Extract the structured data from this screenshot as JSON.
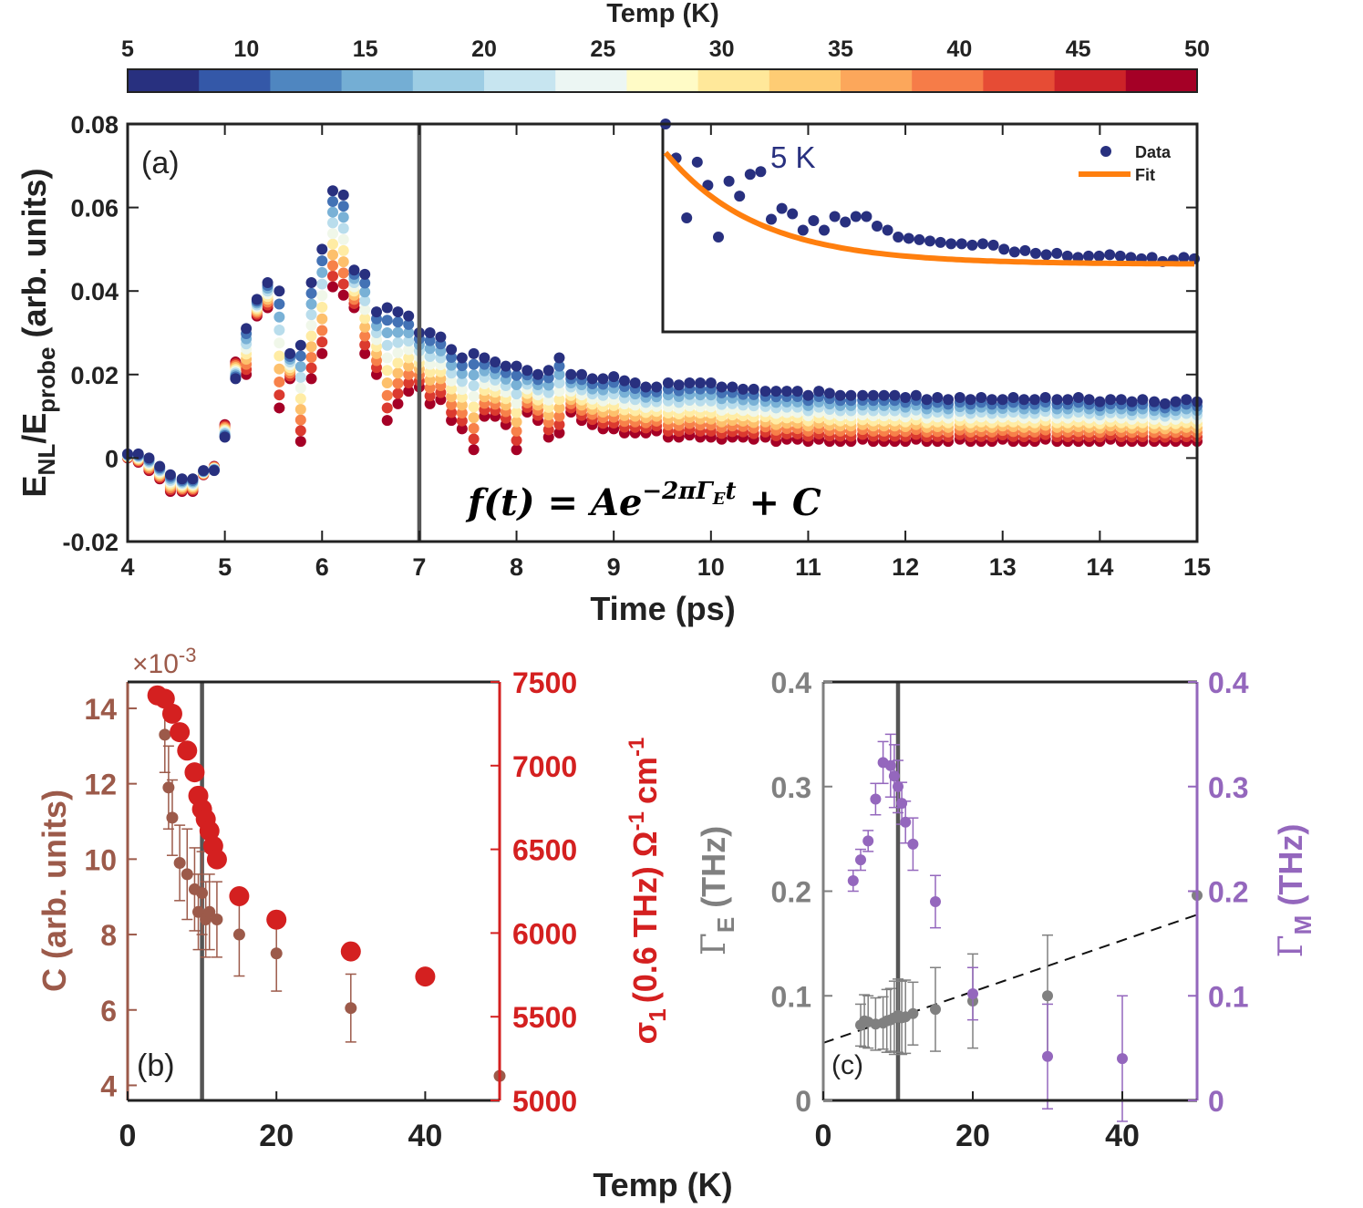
{
  "colorbar": {
    "title": "Temp (K)",
    "ticks": [
      "5",
      "10",
      "15",
      "20",
      "25",
      "30",
      "35",
      "40",
      "45",
      "50"
    ],
    "colors": [
      "#28307f",
      "#3458a8",
      "#4f86c0",
      "#74aed4",
      "#9dcde4",
      "#c7e5f0",
      "#ecf6f3",
      "#fffbc6",
      "#ffe89a",
      "#fecc74",
      "#fca75b",
      "#f67c48",
      "#e64c35",
      "#cd2328",
      "#a50026"
    ]
  },
  "chart_data": [
    {
      "id": "a",
      "type": "scatter",
      "panel_label": "(a)",
      "xlabel": "Time (ps)",
      "ylabel_main": "E",
      "ylabel_sub1": "NL",
      "ylabel_mid": "/E",
      "ylabel_sub2": "probe",
      "ylabel_tail": " (arb. units)",
      "xlim": [
        4,
        15
      ],
      "ylim": [
        -0.02,
        0.08
      ],
      "xticks": [
        "4",
        "5",
        "6",
        "7",
        "8",
        "9",
        "10",
        "11",
        "12",
        "13",
        "14",
        "15"
      ],
      "yticks": [
        "-0.02",
        "0",
        "0.02",
        "0.04",
        "0.06",
        "0.08"
      ],
      "vline_x": 7,
      "formula": {
        "lhs": "f(t) = Ae",
        "exp": "−2πΓ",
        "exp_sub": "E",
        "exp_t": "t",
        "rhs": " + C"
      },
      "series_5K": {
        "x": [
          4.0,
          4.11,
          4.22,
          4.33,
          4.44,
          4.56,
          4.67,
          4.78,
          4.89,
          5.0,
          5.11,
          5.22,
          5.33,
          5.44,
          5.56,
          5.67,
          5.78,
          5.89,
          6.0,
          6.11,
          6.22,
          6.33,
          6.44,
          6.56,
          6.67,
          6.78,
          6.89,
          7.0,
          7.11,
          7.22,
          7.33,
          7.44,
          7.56,
          7.67,
          7.78,
          7.89,
          8.0,
          8.11,
          8.22,
          8.33,
          8.44,
          8.56,
          8.67,
          8.78,
          8.89,
          9.0,
          9.11,
          9.22,
          9.33,
          9.44,
          9.56,
          9.67,
          9.78,
          9.89,
          10.0,
          10.11,
          10.22,
          10.33,
          10.44,
          10.56,
          10.67,
          10.78,
          10.89,
          11.0,
          11.11,
          11.22,
          11.33,
          11.44,
          11.56,
          11.67,
          11.78,
          11.89,
          12.0,
          12.11,
          12.22,
          12.33,
          12.44,
          12.56,
          12.67,
          12.78,
          12.89,
          13.0,
          13.11,
          13.22,
          13.33,
          13.44,
          13.56,
          13.67,
          13.78,
          13.89,
          14.0,
          14.11,
          14.22,
          14.33,
          14.44,
          14.56,
          14.67,
          14.78,
          14.89,
          15.0
        ],
        "y": [
          0.001,
          0.001,
          0.0,
          -0.002,
          -0.004,
          -0.005,
          -0.005,
          -0.003,
          -0.003,
          0.005,
          0.019,
          0.031,
          0.038,
          0.042,
          0.04,
          0.025,
          0.027,
          0.042,
          0.05,
          0.064,
          0.063,
          0.045,
          0.044,
          0.035,
          0.036,
          0.035,
          0.034,
          0.03,
          0.03,
          0.029,
          0.026,
          0.024,
          0.025,
          0.024,
          0.023,
          0.022,
          0.022,
          0.021,
          0.02,
          0.021,
          0.024,
          0.02,
          0.02,
          0.019,
          0.019,
          0.0195,
          0.0185,
          0.018,
          0.017,
          0.017,
          0.018,
          0.0175,
          0.018,
          0.018,
          0.018,
          0.017,
          0.017,
          0.0165,
          0.0165,
          0.016,
          0.016,
          0.016,
          0.016,
          0.015,
          0.016,
          0.0155,
          0.015,
          0.015,
          0.015,
          0.015,
          0.015,
          0.015,
          0.0145,
          0.015,
          0.014,
          0.0145,
          0.014,
          0.0145,
          0.014,
          0.0145,
          0.014,
          0.014,
          0.0145,
          0.014,
          0.014,
          0.0145,
          0.014,
          0.014,
          0.0145,
          0.014,
          0.0135,
          0.014,
          0.014,
          0.0135,
          0.014,
          0.0135,
          0.013,
          0.0135,
          0.014,
          0.0135
        ]
      },
      "series_50K": {
        "x": [
          4.0,
          4.11,
          4.22,
          4.33,
          4.44,
          4.56,
          4.67,
          4.78,
          4.89,
          5.0,
          5.11,
          5.22,
          5.33,
          5.44,
          5.56,
          5.67,
          5.78,
          5.89,
          6.0,
          6.11,
          6.22,
          6.33,
          6.44,
          6.56,
          6.67,
          6.78,
          6.89,
          7.0,
          7.11,
          7.22,
          7.33,
          7.44,
          7.56,
          7.67,
          7.78,
          7.89,
          8.0,
          8.11,
          8.22,
          8.33,
          8.44,
          8.56,
          8.67,
          8.78,
          8.89,
          9.0,
          9.11,
          9.22,
          9.33,
          9.44,
          9.56,
          9.67,
          9.78,
          9.89,
          10.0,
          10.11,
          10.22,
          10.33,
          10.44,
          10.56,
          10.67,
          10.78,
          10.89,
          11.0,
          11.11,
          11.22,
          11.33,
          11.44,
          11.56,
          11.67,
          11.78,
          11.89,
          12.0,
          12.11,
          12.22,
          12.33,
          12.44,
          12.56,
          12.67,
          12.78,
          12.89,
          13.0,
          13.11,
          13.22,
          13.33,
          13.44,
          13.56,
          13.67,
          13.78,
          13.89,
          14.0,
          14.11,
          14.22,
          14.33,
          14.44,
          14.56,
          14.67,
          14.78,
          14.89,
          15.0
        ],
        "y": [
          0.0,
          -0.001,
          -0.003,
          -0.005,
          -0.008,
          -0.008,
          -0.008,
          -0.004,
          -0.002,
          0.008,
          0.023,
          0.02,
          0.034,
          0.036,
          0.012,
          0.019,
          0.004,
          0.019,
          0.025,
          0.041,
          0.039,
          0.036,
          0.025,
          0.02,
          0.009,
          0.013,
          0.016,
          0.017,
          0.013,
          0.014,
          0.009,
          0.007,
          0.002,
          0.01,
          0.01,
          0.008,
          0.002,
          0.011,
          0.009,
          0.005,
          0.006,
          0.011,
          0.009,
          0.008,
          0.007,
          0.007,
          0.006,
          0.006,
          0.006,
          0.0065,
          0.005,
          0.005,
          0.0055,
          0.005,
          0.005,
          0.0045,
          0.005,
          0.005,
          0.0045,
          0.005,
          0.004,
          0.0045,
          0.0045,
          0.004,
          0.0045,
          0.004,
          0.004,
          0.004,
          0.0045,
          0.004,
          0.004,
          0.004,
          0.004,
          0.0045,
          0.004,
          0.004,
          0.004,
          0.0045,
          0.004,
          0.004,
          0.004,
          0.0045,
          0.004,
          0.004,
          0.004,
          0.0045,
          0.004,
          0.004,
          0.004,
          0.004,
          0.004,
          0.0045,
          0.004,
          0.004,
          0.004,
          0.004,
          0.004,
          0.004,
          0.004,
          0.004
        ]
      },
      "inset": {
        "label": "5 K",
        "legend": [
          "Data",
          "Fit"
        ],
        "data_color": "#28307f",
        "fit_color": "#ff7f0e",
        "xlim": [
          9.5,
          15
        ],
        "ylim": [
          0.005,
          0.02
        ],
        "data_x": [
          9.5,
          9.61,
          9.72,
          9.83,
          9.94,
          10.05,
          10.16,
          10.27,
          10.38,
          10.49,
          10.6,
          10.71,
          10.82,
          10.93,
          11.04,
          11.15,
          11.26,
          11.37,
          11.48,
          11.59,
          11.7,
          11.81,
          11.92,
          12.03,
          12.14,
          12.25,
          12.36,
          12.47,
          12.58,
          12.69,
          12.8,
          12.91,
          13.02,
          13.13,
          13.24,
          13.35,
          13.46,
          13.57,
          13.68,
          13.79,
          13.9,
          14.01,
          14.12,
          14.23,
          14.34,
          14.45,
          14.56,
          14.67,
          14.78,
          14.89,
          15.0
        ],
        "data_y": [
          0.02,
          0.0175,
          0.0131,
          0.0172,
          0.0155,
          0.0117,
          0.0158,
          0.0147,
          0.0163,
          0.0165,
          0.013,
          0.0138,
          0.0134,
          0.0122,
          0.0129,
          0.0122,
          0.0132,
          0.0128,
          0.0132,
          0.0132,
          0.0125,
          0.0122,
          0.0117,
          0.0116,
          0.0115,
          0.0114,
          0.0113,
          0.0112,
          0.0112,
          0.0111,
          0.0112,
          0.0111,
          0.0108,
          0.0106,
          0.0107,
          0.0105,
          0.0104,
          0.0105,
          0.0103,
          0.0102,
          0.0103,
          0.0103,
          0.0104,
          0.0103,
          0.0102,
          0.0101,
          0.0102,
          0.0099,
          0.01,
          0.0102,
          0.0101
        ],
        "fit": {
          "A": 0.0082,
          "rate": 1.05,
          "C": 0.0097,
          "x0": 9.5
        }
      }
    },
    {
      "id": "b",
      "type": "scatter",
      "panel_label": "(b)",
      "xlabel": "Temp (K)",
      "ylabel_left": "C (arb. units)",
      "ylabel_right_pre": "σ",
      "ylabel_right_sub": "1",
      "ylabel_right_mid": "(0.6 THz) Ω",
      "ylabel_right_sup": "-1",
      "ylabel_right_tail": "cm",
      "ylabel_right_sup2": "-1",
      "exponent_label": "×10",
      "exponent_sup": "-3",
      "xlim": [
        0,
        50
      ],
      "ylim_left": [
        3.6,
        14.7
      ],
      "ylim_right": [
        5000,
        7500
      ],
      "xticks": [
        "0",
        "20",
        "40"
      ],
      "yticks_left": [
        "4",
        "6",
        "8",
        "10",
        "12",
        "14"
      ],
      "yticks_right": [
        "5000",
        "5500",
        "6000",
        "6500",
        "7000",
        "7500"
      ],
      "vline_x": 10,
      "left_color": "#9c5a4a",
      "right_color": "#d42020",
      "C_series": {
        "x": [
          5,
          5.5,
          6,
          7,
          8,
          9,
          9.5,
          10,
          10.5,
          11,
          12,
          15,
          20,
          30,
          50
        ],
        "y": [
          13.3,
          11.9,
          11.1,
          9.9,
          9.6,
          9.2,
          8.6,
          9.1,
          8.4,
          8.6,
          8.4,
          8.0,
          7.5,
          6.05,
          4.25
        ],
        "err": [
          1.0,
          1.1,
          1.0,
          1.0,
          1.2,
          1.1,
          1.0,
          1.1,
          1.0,
          1.0,
          1.0,
          1.1,
          1.0,
          0.9,
          0.0
        ]
      },
      "sigma_series": {
        "x": [
          4,
          5,
          6,
          7,
          8,
          9,
          9.5,
          10,
          10.5,
          11,
          11.5,
          12,
          15,
          20,
          30,
          40
        ],
        "y": [
          7420,
          7400,
          7310,
          7200,
          7090,
          6960,
          6820,
          6740,
          6680,
          6610,
          6520,
          6440,
          6220,
          6080,
          5890,
          5740
        ]
      }
    },
    {
      "id": "c",
      "type": "scatter",
      "panel_label": "(c)",
      "ylabel_left_pre": "Γ",
      "ylabel_left_sub": "E",
      "ylabel_left_tail": " (THz)",
      "ylabel_right_pre": "Γ",
      "ylabel_right_sub": "M",
      "ylabel_right_tail": " (THz)",
      "xlim": [
        0,
        50
      ],
      "ylim": [
        0,
        0.4
      ],
      "xticks": [
        "0",
        "20",
        "40"
      ],
      "yticks_left": [
        "0",
        "0.1",
        "0.2",
        "0.3",
        "0.4"
      ],
      "yticks_right": [
        "0",
        "0.1",
        "0.2",
        "0.3",
        "0.4"
      ],
      "vline_x": 10,
      "left_color": "#808080",
      "right_color": "#9467bd",
      "gamma_E": {
        "x": [
          5,
          5.5,
          6,
          7,
          8,
          8.5,
          9,
          9.5,
          10,
          10.5,
          11,
          12,
          15,
          20,
          30,
          50
        ],
        "y": [
          0.072,
          0.076,
          0.075,
          0.073,
          0.074,
          0.076,
          0.077,
          0.079,
          0.081,
          0.079,
          0.08,
          0.083,
          0.087,
          0.095,
          0.1,
          0.196
        ],
        "err": [
          0.02,
          0.025,
          0.025,
          0.025,
          0.025,
          0.03,
          0.03,
          0.035,
          0.035,
          0.035,
          0.035,
          0.03,
          0.04,
          0.045,
          0.058,
          0.0
        ]
      },
      "gamma_M": {
        "x": [
          4,
          5,
          6,
          7,
          8,
          9,
          9.5,
          10,
          10.5,
          11,
          12,
          15,
          20,
          30,
          40
        ],
        "y": [
          0.21,
          0.23,
          0.248,
          0.288,
          0.323,
          0.32,
          0.31,
          0.3,
          0.284,
          0.266,
          0.245,
          0.19,
          0.102,
          0.042,
          0.04
        ],
        "err": [
          0.01,
          0.01,
          0.01,
          0.015,
          0.02,
          0.03,
          0.03,
          0.025,
          0.02,
          0.02,
          0.025,
          0.025,
          0.025,
          0.05,
          0.06
        ]
      },
      "trend": {
        "y0": 0.055,
        "slope": 0.00245
      }
    }
  ]
}
